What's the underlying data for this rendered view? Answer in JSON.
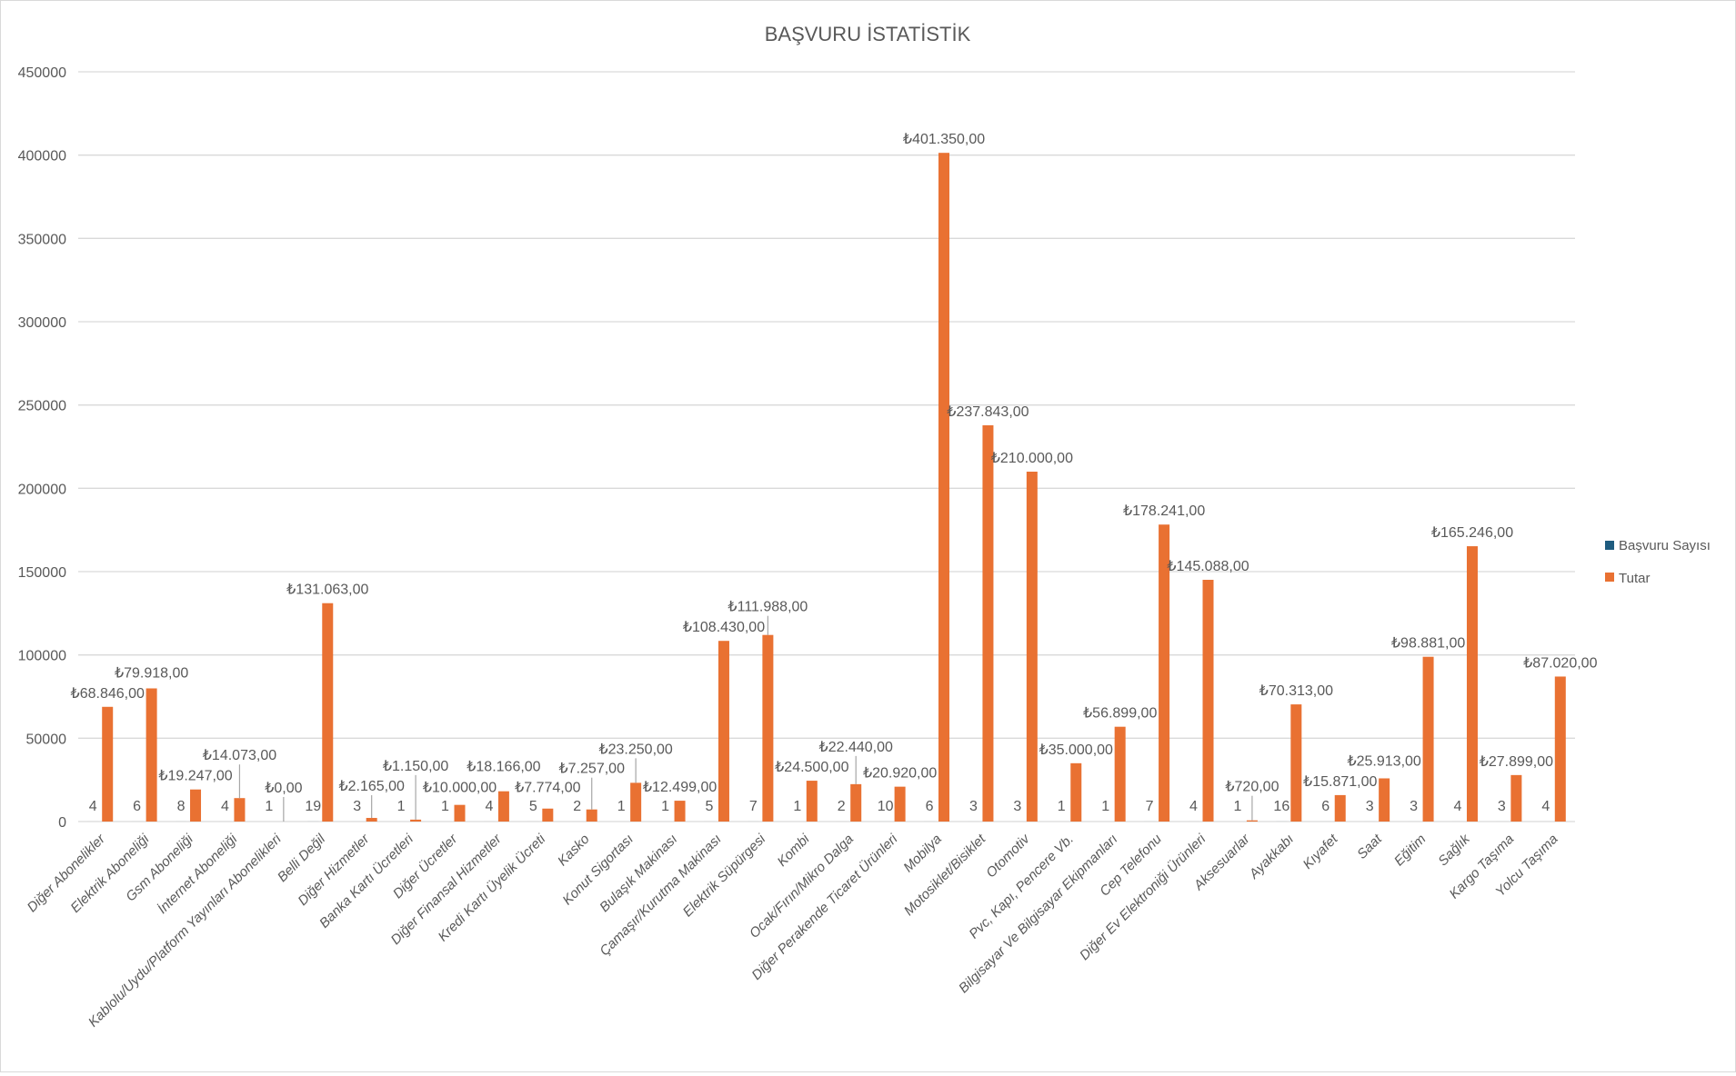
{
  "chart_data": {
    "type": "bar",
    "title": "BAŞVURU İSTATİSTİK",
    "xlabel": "",
    "ylabel": "",
    "ylim": [
      0,
      450000
    ],
    "yticks": [
      0,
      50000,
      100000,
      150000,
      200000,
      250000,
      300000,
      350000,
      400000,
      450000
    ],
    "grid": true,
    "legend_position": "right",
    "currency_symbol": "₺",
    "categories": [
      "Diğer Abonelikler",
      "Elektrik Aboneliği",
      "Gsm Aboneliği",
      "İnternet Aboneliği",
      "Kablolu/Uydu/Platform Yayınları Abonelikleri",
      "Belli Değil",
      "Diğer Hizmetler",
      "Banka Kartı Ücretleri",
      "Diğer Ücretler",
      "Diğer Finansal Hizmetler",
      "Kredi Kartı Üyelik Ücreti",
      "Kasko",
      "Konut Sigortası",
      "Bulaşık Makinası",
      "Çamaşır/Kurutma Makinası",
      "Elektrik Süpürgesi",
      "Kombi",
      "Ocak/Fırın/Mikro Dalga",
      "Diğer Perakende Ticaret Ürünleri",
      "Mobilya",
      "Motosiklet/Bisiklet",
      "Otomotiv",
      "Pvc, Kapı, Pencere Vb.",
      "Bilgisayar Ve Bilgisayar Ekipmanları",
      "Cep Telefonu",
      "Diğer Ev Elektroniği Ürünleri",
      "Aksesuarlar",
      "Ayakkabı",
      "Kıyafet",
      "Saat",
      "Eğitim",
      "Sağlık",
      "Kargo Taşıma",
      "Yolcu Taşıma"
    ],
    "series": [
      {
        "name": "Başvuru Sayısı",
        "color": "#1f5c7f",
        "values": [
          4,
          6,
          8,
          4,
          1,
          19,
          3,
          1,
          1,
          4,
          5,
          2,
          1,
          1,
          5,
          7,
          1,
          2,
          10,
          6,
          3,
          3,
          1,
          1,
          7,
          4,
          1,
          16,
          6,
          3,
          3,
          4,
          3,
          4
        ]
      },
      {
        "name": "Tutar",
        "color": "#e97132",
        "values": [
          68846,
          79918,
          19247,
          14073,
          0,
          131063,
          2165,
          1150,
          10000,
          18166,
          7774,
          7257,
          23250,
          12499,
          108430,
          111988,
          24500,
          22440,
          20920,
          401350,
          237843,
          210000,
          35000,
          56899,
          178241,
          145088,
          720,
          70313,
          15871,
          25913,
          98881,
          165246,
          27899,
          87020
        ]
      }
    ]
  }
}
